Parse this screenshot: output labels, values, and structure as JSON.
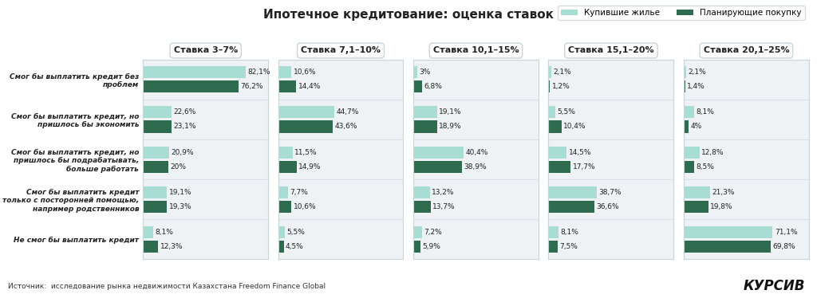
{
  "title": "Ипотечное кредитование: оценка ставок",
  "annotations": [
    "Источник:  исследование рынка недвижимости Казахстана Freedom Finance Global",
    "КУРСИВ"
  ],
  "chart_data": [
    {
      "type": "bar",
      "orientation": "horizontal",
      "title": "Ставка 3–7%",
      "tick_labels": "y",
      "legend": "upper right",
      "data_labels": true,
      "xlim": [
        0,
        100
      ],
      "categories": [
        "Смог бы выплатить кредит без проблем",
        "Смог бы выплатить кредит, но пришлось бы экономить",
        "Смог бы выплатить кредит, но пришлось бы подрабатывать, больше работать",
        "Смог бы выплатить кредит только с посторонней помощью, например родственников",
        "Не смог бы выплатить кредит"
      ],
      "series": [
        {
          "name": "Купившие жилье",
          "color": "#a8ddd3",
          "values": [
            82.1,
            22.6,
            20.9,
            19.1,
            8.1
          ],
          "value_labels": [
            "82,1%",
            "22,6%",
            "20,9%",
            "19,1%",
            "8,1%"
          ]
        },
        {
          "name": "Планирующие покупку",
          "color": "#2e6b4f",
          "values": [
            76.2,
            23.1,
            20,
            19.3,
            12.3
          ],
          "value_labels": [
            "76,2%",
            "23,1%",
            "20%",
            "19,3%",
            "12,3%"
          ]
        }
      ]
    },
    {
      "type": "bar",
      "orientation": "horizontal",
      "title": "Ставка 7,1–10%",
      "tick_labels": false,
      "data_labels": true,
      "xlim": [
        0,
        100
      ],
      "categories": [
        "Смог бы выплатить кредит без проблем",
        "Смог бы выплатить кредит, но пришлось бы экономить",
        "Смог бы выплатить кредит, но пришлось бы подрабатывать, больше работать",
        "Смог бы выплатить кредит только с посторонней помощью, например родственников",
        "Не смог бы выплатить кредит"
      ],
      "series": [
        {
          "name": "Купившие жилье",
          "color": "#a8ddd3",
          "values": [
            10.6,
            44.7,
            11.5,
            7.7,
            5.5
          ],
          "value_labels": [
            "10,6%",
            "44,7%",
            "11,5%",
            "7,7%",
            "5,5%"
          ]
        },
        {
          "name": "Планирующие покупку",
          "color": "#2e6b4f",
          "values": [
            14.4,
            43.6,
            14.9,
            10.6,
            4.5
          ],
          "value_labels": [
            "14,4%",
            "43,6%",
            "14,9%",
            "10,6%",
            "4,5%"
          ]
        }
      ]
    },
    {
      "type": "bar",
      "orientation": "horizontal",
      "title": "Ставка 10,1–15%",
      "tick_labels": false,
      "data_labels": true,
      "xlim": [
        0,
        100
      ],
      "categories": [
        "Смог бы выплатить кредит без проблем",
        "Смог бы выплатить кредит, но пришлось бы экономить",
        "Смог бы выплатить кредит, но пришлось бы подрабатывать, больше работать",
        "Смог бы выплатить кредит только с посторонней помощью, например родственников",
        "Не смог бы выплатить кредит"
      ],
      "series": [
        {
          "name": "Купившие жилье",
          "color": "#a8ddd3",
          "values": [
            3,
            19.1,
            40.4,
            13.2,
            7.2
          ],
          "value_labels": [
            "3%",
            "19,1%",
            "40,4%",
            "13,2%",
            "7,2%"
          ]
        },
        {
          "name": "Планирующие покупку",
          "color": "#2e6b4f",
          "values": [
            6.8,
            18.9,
            38.9,
            13.7,
            5.9
          ],
          "value_labels": [
            "6,8%",
            "18,9%",
            "38,9%",
            "13,7%",
            "5,9%"
          ]
        }
      ]
    },
    {
      "type": "bar",
      "orientation": "horizontal",
      "title": "Ставка 15,1–20%",
      "tick_labels": false,
      "data_labels": true,
      "xlim": [
        0,
        100
      ],
      "categories": [
        "Смог бы выплатить кредит без проблем",
        "Смог бы выплатить кредит, но пришлось бы экономить",
        "Смог бы выплатить кредит, но пришлось бы подрабатывать, больше работать",
        "Смог бы выплатить кредит только с посторонней помощью, например родственников",
        "Не смог бы выплатить кредит"
      ],
      "series": [
        {
          "name": "Купившие жилье",
          "color": "#a8ddd3",
          "values": [
            2.1,
            5.5,
            14.5,
            38.7,
            8.1
          ],
          "value_labels": [
            "2,1%",
            "5,5%",
            "14,5%",
            "38,7%",
            "8,1%"
          ]
        },
        {
          "name": "Планирующие покупку",
          "color": "#2e6b4f",
          "values": [
            1.2,
            10.4,
            17.7,
            36.6,
            7.5
          ],
          "value_labels": [
            "1,2%",
            "10,4%",
            "17,7%",
            "36,6%",
            "7,5%"
          ]
        }
      ]
    },
    {
      "type": "bar",
      "orientation": "horizontal",
      "title": "Ставка 20,1–25%",
      "tick_labels": false,
      "data_labels": true,
      "xlim": [
        0,
        100
      ],
      "categories": [
        "Смог бы выплатить кредит без проблем",
        "Смог бы выплатить кредит, но пришлось бы экономить",
        "Смог бы выплатить кредит, но пришлось бы подрабатывать, больше работать",
        "Смог бы выплатить кредит только с посторонней помощью, например родственников",
        "Не смог бы выплатить кредит"
      ],
      "series": [
        {
          "name": "Купившие жилье",
          "color": "#a8ddd3",
          "values": [
            2.1,
            8.1,
            12.8,
            21.3,
            71.1
          ],
          "value_labels": [
            "2,1%",
            "8,1%",
            "12,8%",
            "21,3%",
            "71,1%"
          ]
        },
        {
          "name": "Планирующие покупку",
          "color": "#2e6b4f",
          "values": [
            1.4,
            4,
            8.5,
            19.8,
            69.8
          ],
          "value_labels": [
            "1,4%",
            "4%",
            "8,5%",
            "19,8%",
            "69,8%"
          ]
        }
      ]
    }
  ]
}
